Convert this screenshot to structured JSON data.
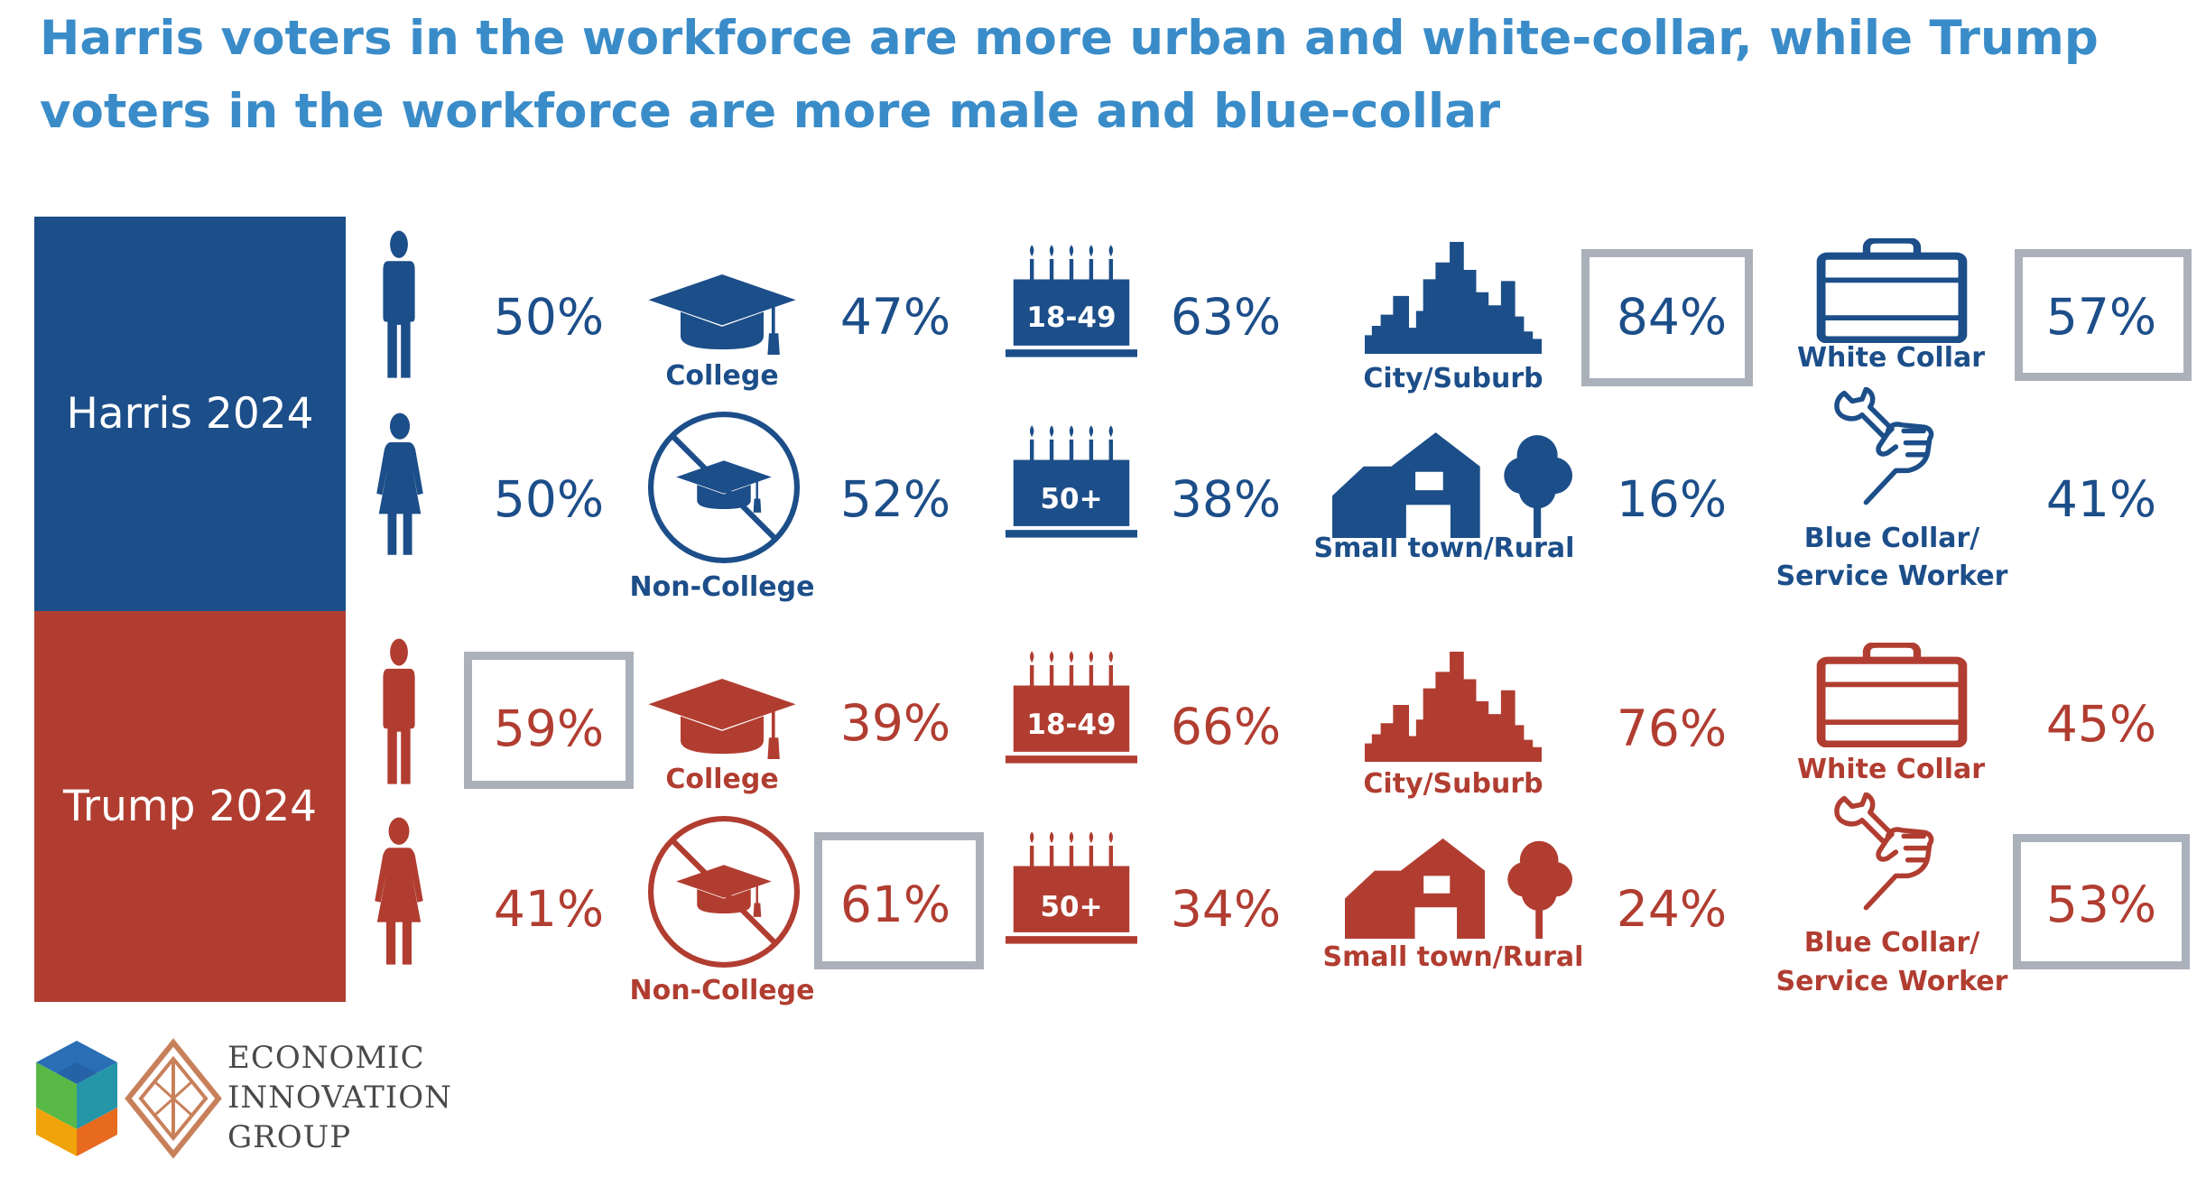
{
  "title": "Harris voters in the workforce are more urban and white-collar, while Trump voters in the workforce are more male and blue-collar",
  "colors": {
    "title": "#3a8cc9",
    "harris": "#1c4e89",
    "trump": "#b13d31",
    "highlight_box": "#abb1bb"
  },
  "icons": {
    "gender_top": "man-icon",
    "gender_bottom": "woman-icon",
    "education_top": "graduation-cap-icon",
    "education_bottom": "no-graduation-cap-icon",
    "age": "birthday-cake-icon",
    "location_top": "city-skyline-icon",
    "location_bottom": "barn-and-tree-icon",
    "occupation_top": "briefcase-icon",
    "occupation_bottom": "hand-wrench-icon"
  },
  "labels": {
    "college": "College",
    "non_college": "Non-College",
    "age_young": "18-49",
    "age_old": "50+",
    "city_suburb": "City/Suburb",
    "small_town_rural": "Small town/Rural",
    "white_collar": "White Collar",
    "blue_collar_line1": "Blue Collar/",
    "blue_collar_line2": "Service Worker"
  },
  "harris": {
    "name": "Harris 2024",
    "male": "50%",
    "female": "50%",
    "college": "47%",
    "non_college": "52%",
    "age_18_49": "63%",
    "age_50_plus": "38%",
    "city_suburb": "84%",
    "small_town_rural": "16%",
    "white_collar": "57%",
    "blue_collar_service": "41%",
    "highlighted": [
      "city_suburb",
      "white_collar"
    ]
  },
  "trump": {
    "name": "Trump 2024",
    "male": "59%",
    "female": "41%",
    "college": "39%",
    "non_college": "61%",
    "age_18_49": "66%",
    "age_50_plus": "34%",
    "city_suburb": "76%",
    "small_town_rural": "24%",
    "white_collar": "45%",
    "blue_collar_service": "53%",
    "highlighted": [
      "male",
      "non_college",
      "blue_collar_service"
    ]
  },
  "logo": {
    "line1": "ECONOMIC",
    "line2": "INNOVATION",
    "line3": "GROUP"
  }
}
